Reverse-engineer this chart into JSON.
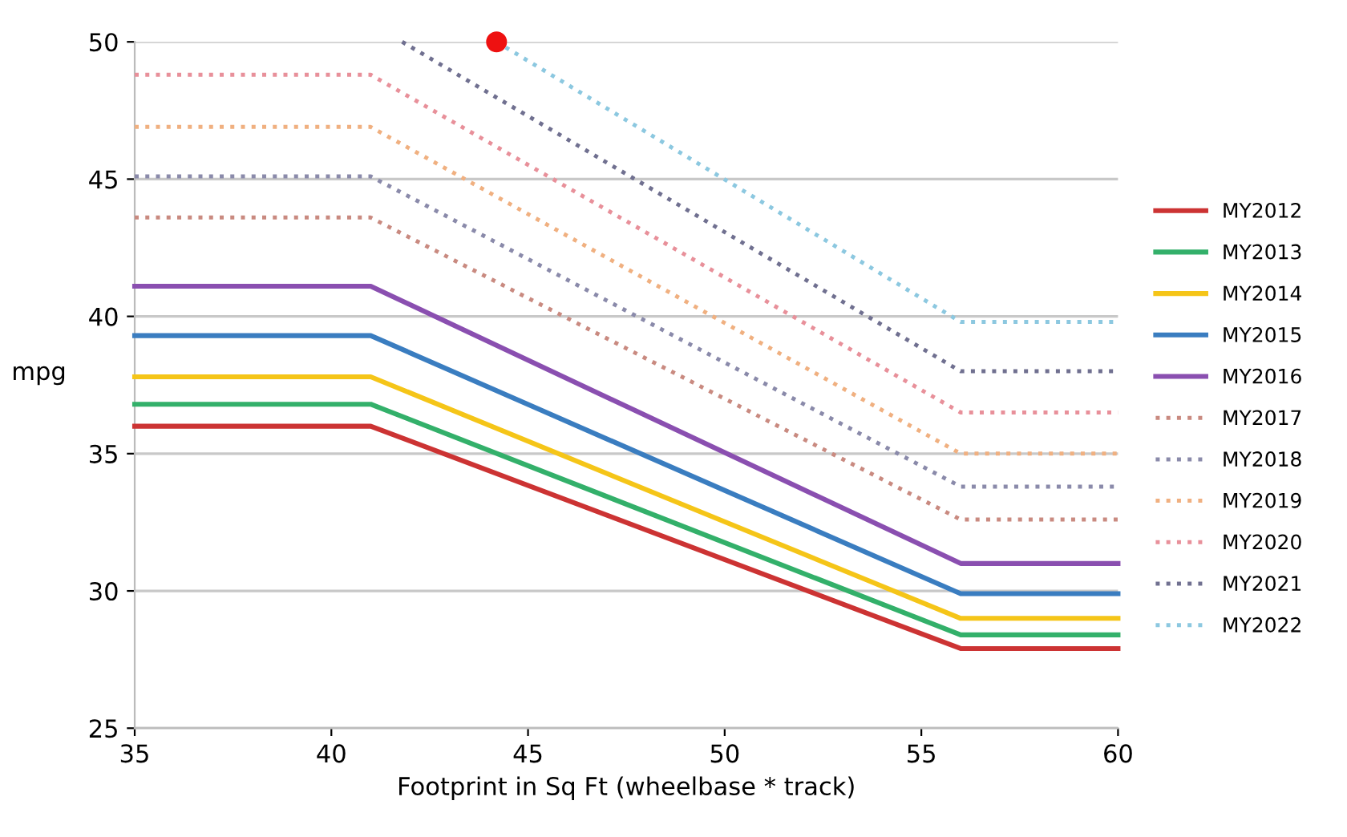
{
  "chart_data": {
    "type": "line",
    "xlabel": "Footprint in Sq Ft (wheelbase * track)",
    "ylabel": "mpg",
    "xlim": [
      35,
      60
    ],
    "xticks": [
      35,
      40,
      45,
      50,
      55,
      60
    ],
    "ylim": [
      25,
      50
    ],
    "yticks": [
      25,
      30,
      35,
      40,
      45,
      50
    ],
    "grid": "y",
    "legend": "right",
    "marker": "none",
    "series": [
      {
        "name": "MY2012",
        "color": "#cc3333",
        "line_style": "solid",
        "x": [
          35,
          41,
          56,
          60
        ],
        "values": [
          36.0,
          36.0,
          27.9,
          27.9
        ]
      },
      {
        "name": "MY2013",
        "color": "#33b06a",
        "line_style": "solid",
        "x": [
          35,
          41,
          56,
          60
        ],
        "values": [
          36.8,
          36.8,
          28.4,
          28.4
        ]
      },
      {
        "name": "MY2014",
        "color": "#f5c518",
        "line_style": "solid",
        "x": [
          35,
          41,
          56,
          60
        ],
        "values": [
          37.8,
          37.8,
          29.0,
          29.0
        ]
      },
      {
        "name": "MY2015",
        "color": "#3a7dc0",
        "line_style": "solid",
        "x": [
          35,
          41,
          56,
          60
        ],
        "values": [
          39.3,
          39.3,
          29.9,
          29.9
        ]
      },
      {
        "name": "MY2016",
        "color": "#8a4fb0",
        "line_style": "solid",
        "x": [
          35,
          41,
          56,
          60
        ],
        "values": [
          41.1,
          41.1,
          31.0,
          31.0
        ]
      },
      {
        "name": "MY2017",
        "color": "#c98a80",
        "line_style": "dotted",
        "x": [
          35,
          41,
          56,
          60
        ],
        "values": [
          43.6,
          43.6,
          32.6,
          32.6
        ]
      },
      {
        "name": "MY2018",
        "color": "#8a8aaa",
        "line_style": "dotted",
        "x": [
          35,
          41,
          56,
          60
        ],
        "values": [
          45.1,
          45.1,
          33.8,
          33.8
        ]
      },
      {
        "name": "MY2019",
        "color": "#f0b080",
        "line_style": "dotted",
        "x": [
          35,
          41,
          56,
          60
        ],
        "values": [
          46.9,
          46.9,
          35.0,
          35.0
        ]
      },
      {
        "name": "MY2020",
        "color": "#e8909a",
        "line_style": "dotted",
        "x": [
          35,
          41,
          56,
          60
        ],
        "values": [
          48.8,
          48.8,
          36.5,
          36.5
        ]
      },
      {
        "name": "MY2021",
        "color": "#707090",
        "line_style": "dotted",
        "x": [
          41.8,
          56,
          60
        ],
        "values": [
          50,
          38.0,
          38.0
        ]
      },
      {
        "name": "MY2022",
        "color": "#8cc8e0",
        "line_style": "dotted",
        "x": [
          44.2,
          56,
          60
        ],
        "values": [
          50,
          39.8,
          39.8
        ]
      },
      {
        "type": "scatter",
        "color": "#ee1111",
        "marker": "circle",
        "x": [
          44.2
        ],
        "values": [
          50
        ]
      }
    ]
  }
}
